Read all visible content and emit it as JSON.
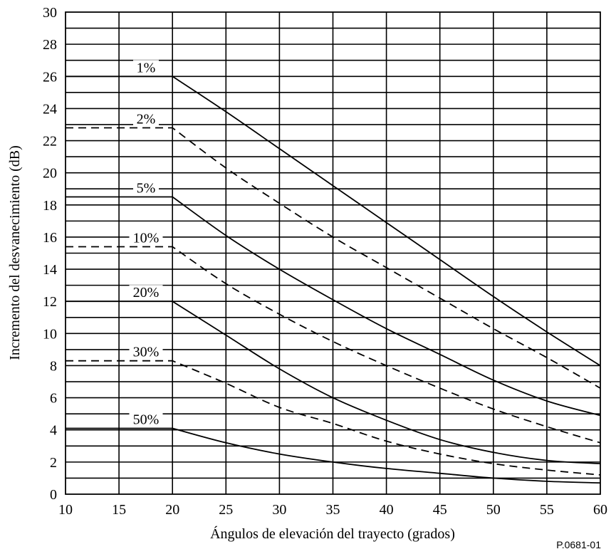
{
  "chart_data": {
    "type": "line",
    "title": "",
    "xlabel": "Ángulos de elevación del trayecto (grados)",
    "ylabel": "Incremento del desvanecimiento (dB)",
    "xlim": [
      10,
      60
    ],
    "ylim": [
      0,
      30
    ],
    "xticks": [
      10,
      15,
      20,
      25,
      30,
      35,
      40,
      45,
      50,
      55,
      60
    ],
    "yticks": [
      0,
      2,
      4,
      6,
      8,
      10,
      12,
      14,
      16,
      18,
      20,
      22,
      24,
      26,
      28,
      30
    ],
    "grid": true,
    "figure_code": "P.0681-01",
    "series": [
      {
        "name": "1%",
        "dash": "solid",
        "x": [
          10,
          20,
          25,
          30,
          35,
          40,
          45,
          50,
          55,
          60
        ],
        "y": [
          26.0,
          26.0,
          23.8,
          21.5,
          19.2,
          16.9,
          14.6,
          12.3,
          10.1,
          8.0
        ]
      },
      {
        "name": "2%",
        "dash": "dashed",
        "x": [
          10,
          20,
          25,
          30,
          35,
          40,
          45,
          50,
          55,
          60
        ],
        "y": [
          22.8,
          22.8,
          20.3,
          18.1,
          16.0,
          14.1,
          12.2,
          10.3,
          8.5,
          6.6
        ]
      },
      {
        "name": "5%",
        "dash": "solid",
        "x": [
          10,
          20,
          25,
          30,
          35,
          40,
          45,
          50,
          55,
          60
        ],
        "y": [
          18.5,
          18.5,
          16.1,
          14.0,
          12.1,
          10.3,
          8.7,
          7.1,
          5.8,
          4.9
        ]
      },
      {
        "name": "10%",
        "dash": "dashed",
        "x": [
          10,
          20,
          25,
          30,
          35,
          40,
          45,
          50,
          55,
          60
        ],
        "y": [
          15.4,
          15.4,
          13.1,
          11.2,
          9.5,
          8.0,
          6.6,
          5.3,
          4.2,
          3.2
        ]
      },
      {
        "name": "20%",
        "dash": "solid",
        "x": [
          10,
          20,
          25,
          30,
          35,
          40,
          45,
          50,
          55,
          60
        ],
        "y": [
          12.0,
          12.0,
          9.9,
          7.8,
          6.0,
          4.6,
          3.4,
          2.6,
          2.1,
          1.9
        ]
      },
      {
        "name": "30%",
        "dash": "dashed",
        "x": [
          10,
          20,
          25,
          30,
          35,
          40,
          45,
          50,
          55,
          60
        ],
        "y": [
          8.3,
          8.3,
          6.9,
          5.4,
          4.4,
          3.3,
          2.5,
          1.9,
          1.5,
          1.2
        ]
      },
      {
        "name": "50%",
        "dash": "solid",
        "x": [
          10,
          20,
          25,
          30,
          35,
          40,
          45,
          50,
          55,
          60
        ],
        "y": [
          4.1,
          4.1,
          3.2,
          2.5,
          2.0,
          1.6,
          1.3,
          1.0,
          0.8,
          0.7
        ]
      }
    ]
  }
}
